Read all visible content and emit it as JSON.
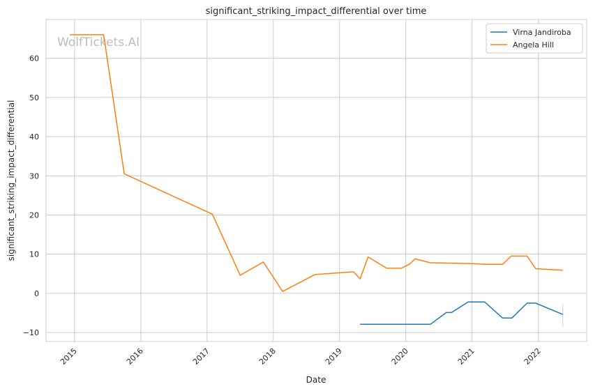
{
  "chart_data": {
    "type": "line",
    "title": "significant_striking_impact_differential over time",
    "xlabel": "Date",
    "ylabel": "significant_striking_impact_differential",
    "xlim": [
      2014.57,
      2022.73
    ],
    "ylim": [
      -12.3,
      69.9
    ],
    "xticks": [
      2015,
      2016,
      2017,
      2018,
      2019,
      2020,
      2021,
      2022
    ],
    "xtick_labels": [
      "2015",
      "2016",
      "2017",
      "2018",
      "2019",
      "2020",
      "2021",
      "2022"
    ],
    "yticks": [
      -10,
      0,
      10,
      20,
      30,
      40,
      50,
      60
    ],
    "ytick_labels": [
      "−10",
      "0",
      "10",
      "20",
      "30",
      "40",
      "50",
      "60"
    ],
    "grid": true,
    "legend_position": "top-right",
    "watermark": "WolfTickets.AI",
    "series": [
      {
        "name": "Virna Jandiroba",
        "color": "#1f77b4",
        "x": [
          2019.31,
          2020.37,
          2020.61,
          2020.69,
          2020.94,
          2021.19,
          2021.46,
          2021.6,
          2021.83,
          2021.96,
          2022.37
        ],
        "y": [
          -7.9,
          -7.9,
          -4.9,
          -4.9,
          -2.2,
          -2.2,
          -6.3,
          -6.3,
          -2.5,
          -2.5,
          -5.4
        ],
        "band_at_end": [
          -8.6,
          -2.7
        ]
      },
      {
        "name": "Angela Hill",
        "color": "#ff7f0e",
        "x": [
          2014.93,
          2015.44,
          2015.75,
          2017.08,
          2017.5,
          2017.85,
          2018.14,
          2018.63,
          2019.21,
          2019.31,
          2019.43,
          2019.71,
          2019.93,
          2020.06,
          2020.14,
          2020.37,
          2020.69,
          2021.0,
          2021.2,
          2021.46,
          2021.59,
          2021.83,
          2021.96,
          2022.37
        ],
        "y": [
          66,
          66,
          30.5,
          20.2,
          4.6,
          8.0,
          0.5,
          4.8,
          5.5,
          3.7,
          9.3,
          6.4,
          6.4,
          7.5,
          8.8,
          7.8,
          7.7,
          7.6,
          7.4,
          7.4,
          9.5,
          9.5,
          6.3,
          5.9
        ]
      }
    ]
  }
}
